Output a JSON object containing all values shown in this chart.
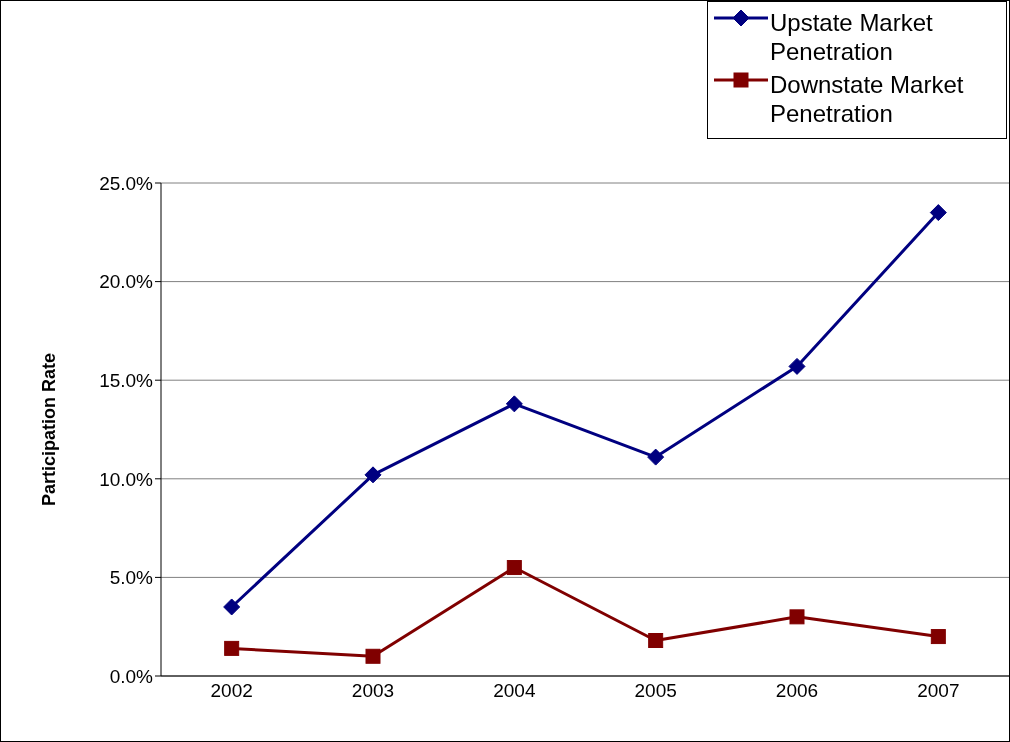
{
  "chart_data": {
    "type": "line",
    "ylabel": "Participation Rate",
    "categories": [
      "2002",
      "2003",
      "2004",
      "2005",
      "2006",
      "2007"
    ],
    "series": [
      {
        "name": "Upstate Market Penetration",
        "color": "#000080",
        "marker": "diamond",
        "values": [
          3.5,
          10.2,
          13.8,
          11.1,
          15.7,
          23.5
        ]
      },
      {
        "name": "Downstate Market Penetration",
        "color": "#800000",
        "marker": "square",
        "values": [
          1.4,
          1.0,
          5.5,
          1.8,
          3.0,
          2.0
        ]
      }
    ],
    "ylim": [
      0,
      25
    ],
    "yticks": [
      {
        "value": 0,
        "label": "0.0%"
      },
      {
        "value": 5,
        "label": "5.0%"
      },
      {
        "value": 10,
        "label": "10.0%"
      },
      {
        "value": 15,
        "label": "15.0%"
      },
      {
        "value": 20,
        "label": "20.0%"
      },
      {
        "value": 25,
        "label": "25.0%"
      }
    ],
    "grid": "y",
    "legend": "top right"
  }
}
